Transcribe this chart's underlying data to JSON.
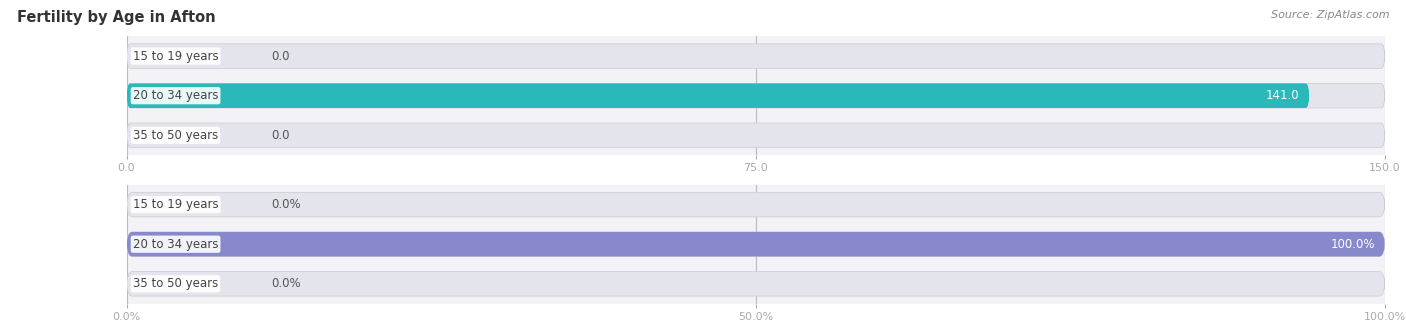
{
  "title": "Fertility by Age in Afton",
  "source": "Source: ZipAtlas.com",
  "top_chart": {
    "categories": [
      "15 to 19 years",
      "20 to 34 years",
      "35 to 50 years"
    ],
    "values": [
      0.0,
      141.0,
      0.0
    ],
    "bar_color": "#2ab8b8",
    "xlim": [
      0,
      150.0
    ],
    "xticks": [
      0.0,
      75.0,
      150.0
    ],
    "xtick_labels": [
      "0.0",
      "75.0",
      "150.0"
    ],
    "value_labels": [
      "0.0",
      "141.0",
      "0.0"
    ]
  },
  "bottom_chart": {
    "categories": [
      "15 to 19 years",
      "20 to 34 years",
      "35 to 50 years"
    ],
    "values": [
      0.0,
      100.0,
      0.0
    ],
    "bar_color": "#8888cc",
    "xlim": [
      0,
      100.0
    ],
    "xticks": [
      0.0,
      50.0,
      100.0
    ],
    "xtick_labels": [
      "0.0%",
      "50.0%",
      "100.0%"
    ],
    "value_labels": [
      "0.0%",
      "100.0%",
      "0.0%"
    ]
  },
  "bar_height": 0.62,
  "bar_bg_color": "#e4e4ec",
  "title_fontsize": 10.5,
  "label_fontsize": 8.5,
  "tick_fontsize": 8,
  "source_fontsize": 8,
  "fig_bg": "#ffffff",
  "axes_bg": "#f2f2f7"
}
